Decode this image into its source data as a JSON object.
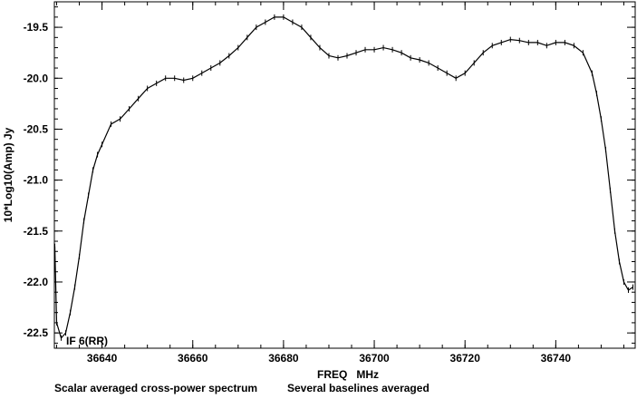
{
  "chart_data": {
    "type": "line",
    "ylabel": "10*Log10(Amp) Jy",
    "xlabel": "FREQ   MHz",
    "annotation": "IF 6(RR)",
    "footer_left": "Scalar averaged cross-power spectrum",
    "footer_right": "Several baselines averaged",
    "xlim": [
      36629.5,
      36757.5
    ],
    "ylim": [
      -22.65,
      -19.25
    ],
    "xticks": [
      36640,
      36660,
      36680,
      36700,
      36720,
      36740
    ],
    "yticks": [
      -19.5,
      -20.0,
      -20.5,
      -21.0,
      -21.5,
      -22.0,
      -22.5
    ],
    "xtick_labels": [
      "36640",
      "36660",
      "36680",
      "36700",
      "36720",
      "36740"
    ],
    "ytick_labels": [
      "-19.5",
      "-20.0",
      "-20.5",
      "-21.0",
      "-21.5",
      "-22.0",
      "-22.5"
    ],
    "series": [
      {
        "x": [
          36629.6,
          36630.0,
          36631.0,
          36632.0,
          36633.0,
          36634.0,
          36635.0,
          36636.0,
          36637.0,
          36638.0,
          36639.0,
          36640.0,
          36642.0,
          36644.0,
          36646.0,
          36648.0,
          36650.0,
          36652.0,
          36654.0,
          36656.0,
          36658.0,
          36660.0,
          36662.0,
          36664.0,
          36666.0,
          36668.0,
          36670.0,
          36672.0,
          36674.0,
          36676.0,
          36678.0,
          36680.0,
          36682.0,
          36684.0,
          36686.0,
          36688.0,
          36690.0,
          36692.0,
          36694.0,
          36696.0,
          36698.0,
          36700.0,
          36702.0,
          36704.0,
          36706.0,
          36708.0,
          36710.0,
          36712.0,
          36714.0,
          36716.0,
          36718.0,
          36720.0,
          36722.0,
          36724.0,
          36726.0,
          36728.0,
          36730.0,
          36732.0,
          36734.0,
          36736.0,
          36738.0,
          36740.0,
          36742.0,
          36744.0,
          36746.0,
          36748.0,
          36749.0,
          36750.0,
          36751.0,
          36752.0,
          36753.0,
          36754.0,
          36755.0,
          36756.0,
          36757.0
        ],
        "y": [
          -21.65,
          -22.4,
          -22.55,
          -22.5,
          -22.3,
          -22.05,
          -21.75,
          -21.4,
          -21.15,
          -20.9,
          -20.75,
          -20.65,
          -20.45,
          -20.4,
          -20.3,
          -20.2,
          -20.1,
          -20.05,
          -20.0,
          -20.0,
          -20.02,
          -20.0,
          -19.95,
          -19.9,
          -19.85,
          -19.78,
          -19.7,
          -19.6,
          -19.5,
          -19.45,
          -19.4,
          -19.4,
          -19.45,
          -19.5,
          -19.6,
          -19.7,
          -19.78,
          -19.8,
          -19.78,
          -19.75,
          -19.72,
          -19.72,
          -19.7,
          -19.72,
          -19.75,
          -19.8,
          -19.82,
          -19.85,
          -19.9,
          -19.95,
          -20.0,
          -19.95,
          -19.85,
          -19.75,
          -19.68,
          -19.65,
          -19.62,
          -19.63,
          -19.65,
          -19.65,
          -19.68,
          -19.65,
          -19.65,
          -19.68,
          -19.75,
          -19.95,
          -20.15,
          -20.4,
          -20.7,
          -21.1,
          -21.5,
          -21.8,
          -22.0,
          -22.08,
          -22.05
        ]
      }
    ]
  }
}
